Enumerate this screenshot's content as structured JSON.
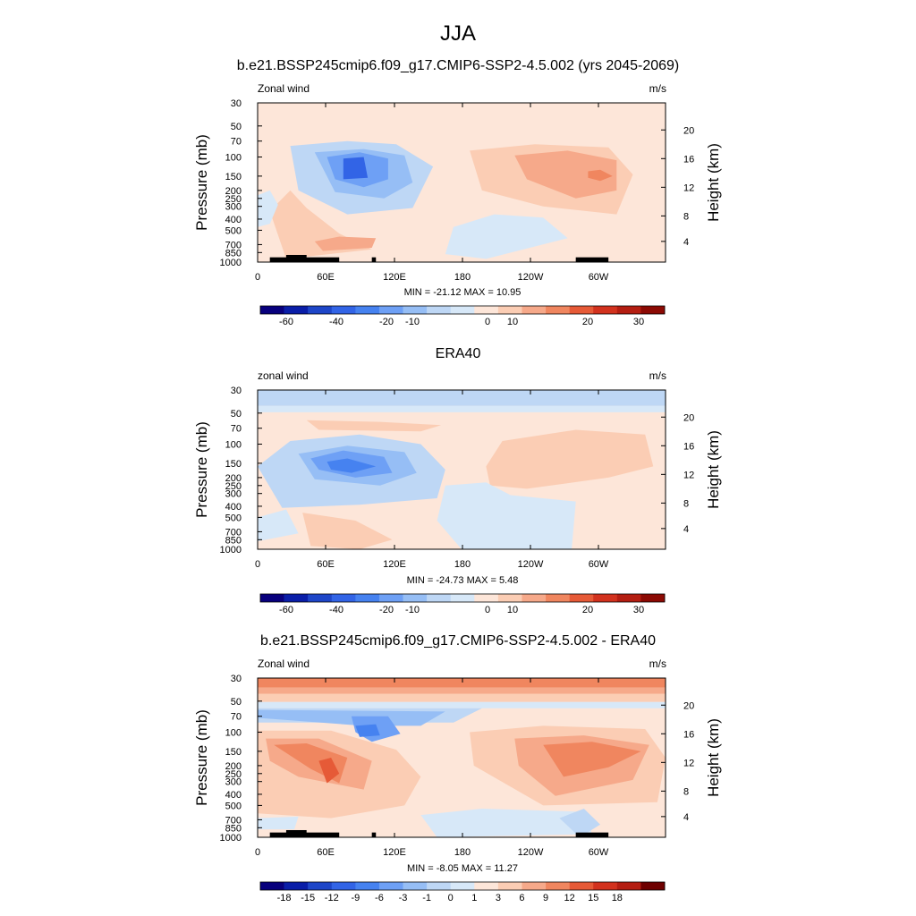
{
  "figure": {
    "title": "JJA",
    "colors": {
      "frame": "#000000",
      "topography": "#000000"
    }
  },
  "chart_data": [
    {
      "type": "heatmap",
      "title": "b.e21.BSSP245cmip6.f09_g17.CMIP6-SSP2-4.5.002 (yrs 2045-2069)",
      "left_label": "Zonal wind",
      "right_label": "m/s",
      "xlabel": "",
      "ylabel": "Pressure (mb)",
      "ylabel_right": "Height (km)",
      "x_ticks": [
        "0",
        "60E",
        "120E",
        "180",
        "120W",
        "60W"
      ],
      "y_ticks": [
        "30",
        "50",
        "70",
        "100",
        "150",
        "200",
        "250",
        "300",
        "400",
        "500",
        "700",
        "850",
        "1000"
      ],
      "y_right_ticks": [
        "20",
        "16",
        "12",
        "8",
        "4"
      ],
      "y_scale": "log",
      "xlim": [
        0,
        360
      ],
      "ylim": [
        1000,
        30
      ],
      "stats": "MIN = -21.12  MAX =  10.95",
      "min": -21.12,
      "max": 10.95,
      "colorbar": {
        "levels": [
          -70,
          -60,
          -50,
          -40,
          -30,
          -20,
          -15,
          -10,
          -5,
          0,
          5,
          10,
          15,
          20,
          25,
          30,
          35
        ],
        "labels": [
          "-60",
          "-40",
          "-20",
          "-10",
          "0",
          "10",
          "20",
          "30"
        ],
        "colors": [
          "#08007d",
          "#0a1ea8",
          "#1e46c8",
          "#3264e6",
          "#4682f0",
          "#6ea0f5",
          "#96bef5",
          "#bed7f5",
          "#d7e8f8",
          "#fde6d9",
          "#fbcdb4",
          "#f6a98a",
          "#f0865f",
          "#e65a37",
          "#d2321e",
          "#b41e12",
          "#8c0a04",
          "#6e0000"
        ]
      },
      "background_level": 0
    },
    {
      "type": "heatmap",
      "title": "ERA40",
      "left_label": "zonal wind",
      "right_label": "m/s",
      "xlabel": "",
      "ylabel": "Pressure (mb)",
      "ylabel_right": "Height (km)",
      "x_ticks": [
        "0",
        "60E",
        "120E",
        "180",
        "120W",
        "60W"
      ],
      "y_ticks": [
        "30",
        "50",
        "70",
        "100",
        "150",
        "200",
        "250",
        "300",
        "400",
        "500",
        "700",
        "850",
        "1000"
      ],
      "y_right_ticks": [
        "20",
        "16",
        "12",
        "8",
        "4"
      ],
      "y_scale": "log",
      "xlim": [
        0,
        360
      ],
      "ylim": [
        1000,
        30
      ],
      "stats": "MIN = -24.73  MAX =   5.48",
      "min": -24.73,
      "max": 5.48,
      "colorbar": {
        "labels": [
          "-60",
          "-40",
          "-20",
          "-10",
          "0",
          "10",
          "20",
          "30"
        ]
      },
      "background_level": 0
    },
    {
      "type": "heatmap",
      "title": "b.e21.BSSP245cmip6.f09_g17.CMIP6-SSP2-4.5.002 - ERA40",
      "left_label": "Zonal wind",
      "right_label": "m/s",
      "xlabel": "",
      "ylabel": "Pressure (mb)",
      "ylabel_right": "Height (km)",
      "x_ticks": [
        "0",
        "60E",
        "120E",
        "180",
        "120W",
        "60W"
      ],
      "y_ticks": [
        "30",
        "50",
        "70",
        "100",
        "150",
        "200",
        "250",
        "300",
        "400",
        "500",
        "700",
        "850",
        "1000"
      ],
      "y_right_ticks": [
        "20",
        "16",
        "12",
        "8",
        "4"
      ],
      "y_scale": "log",
      "xlim": [
        0,
        360
      ],
      "ylim": [
        1000,
        30
      ],
      "stats": "MIN =  -8.05  MAX =  11.27",
      "min": -8.05,
      "max": 11.27,
      "colorbar": {
        "labels": [
          "-18",
          "-15",
          "-12",
          "-9",
          "-6",
          "-3",
          "-1",
          "0",
          "1",
          "3",
          "6",
          "9",
          "12",
          "15",
          "18"
        ]
      },
      "background_level": 0
    }
  ]
}
